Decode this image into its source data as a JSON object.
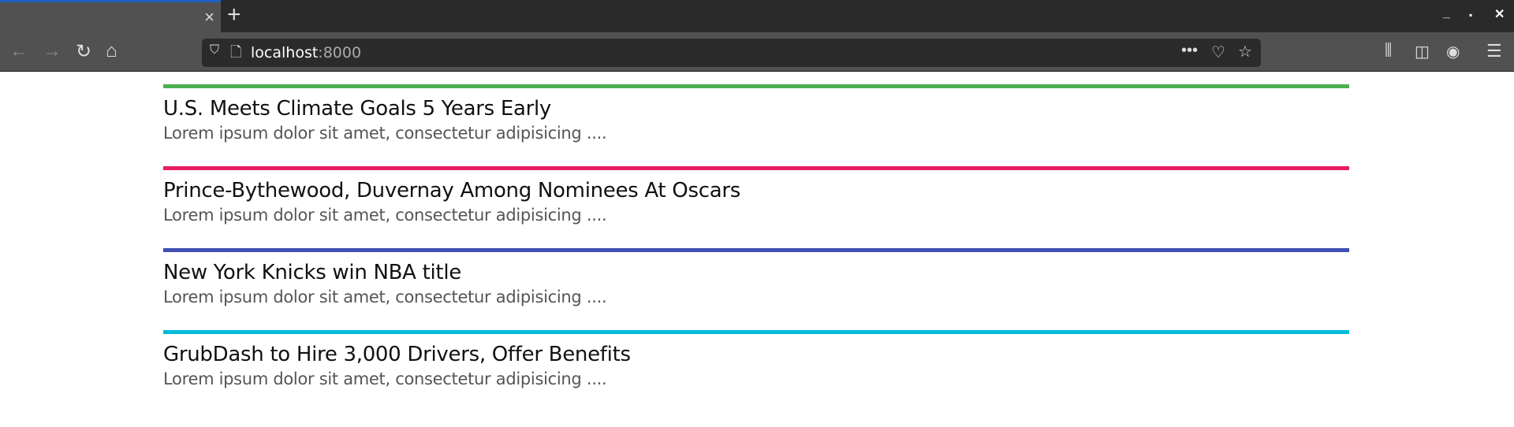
{
  "browser": {
    "url_host": "localhost",
    "url_port": ":8000",
    "tab_close": "×",
    "new_tab": "+"
  },
  "articles": [
    {
      "title": "U.S. Meets Climate Goals 5 Years Early",
      "summary": "Lorem ipsum dolor sit amet, consectetur adipisicing ....",
      "color": "#4caf50"
    },
    {
      "title": "Prince-Bythewood, Duvernay Among Nominees At Oscars",
      "summary": "Lorem ipsum dolor sit amet, consectetur adipisicing ....",
      "color": "#e91e63"
    },
    {
      "title": "New York Knicks win NBA title",
      "summary": "Lorem ipsum dolor sit amet, consectetur adipisicing ....",
      "color": "#3f51b5"
    },
    {
      "title": "GrubDash to Hire 3,000 Drivers, Offer Benefits",
      "summary": "Lorem ipsum dolor sit amet, consectetur adipisicing ....",
      "color": "#00bcd4"
    }
  ]
}
